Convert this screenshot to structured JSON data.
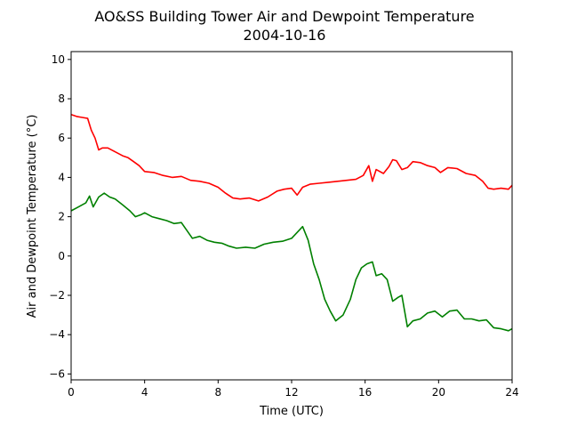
{
  "chart_data": {
    "type": "line",
    "title": "AO&SS Building Tower Air and Dewpoint Temperature",
    "subtitle": "2004-10-16",
    "xlabel": "Time (UTC)",
    "ylabel": "Air and Dewpoint Temperature (°C)",
    "xlim": [
      0,
      24
    ],
    "ylim": [
      -6.3,
      10.4
    ],
    "xticks": [
      0,
      4,
      8,
      12,
      16,
      20,
      24
    ],
    "yticks": [
      -6,
      -4,
      -2,
      0,
      2,
      4,
      6,
      8,
      10
    ],
    "grid": false,
    "legend": "none",
    "series": [
      {
        "color": "#ff0000",
        "x": [
          0,
          0.3,
          0.6,
          0.9,
          1.1,
          1.3,
          1.5,
          1.7,
          2.0,
          2.4,
          2.8,
          3.1,
          3.4,
          3.7,
          4.0,
          4.5,
          5.0,
          5.5,
          6.0,
          6.5,
          7.0,
          7.5,
          8.0,
          8.4,
          8.8,
          9.2,
          9.7,
          10.2,
          10.7,
          11.2,
          11.6,
          12.0,
          12.3,
          12.6,
          13.0,
          13.5,
          14.0,
          14.5,
          15.0,
          15.5,
          15.9,
          16.2,
          16.4,
          16.6,
          17.0,
          17.3,
          17.5,
          17.7,
          18.0,
          18.3,
          18.6,
          19.0,
          19.4,
          19.8,
          20.1,
          20.5,
          21.0,
          21.5,
          22.0,
          22.4,
          22.7,
          23.0,
          23.4,
          23.8,
          24.0
        ],
        "y": [
          7.2,
          7.1,
          7.05,
          7.0,
          6.4,
          6.0,
          5.4,
          5.5,
          5.5,
          5.3,
          5.1,
          5.0,
          4.8,
          4.6,
          4.3,
          4.25,
          4.1,
          4.0,
          4.05,
          3.85,
          3.8,
          3.7,
          3.5,
          3.2,
          2.95,
          2.9,
          2.95,
          2.8,
          3.0,
          3.3,
          3.4,
          3.45,
          3.1,
          3.5,
          3.65,
          3.7,
          3.75,
          3.8,
          3.85,
          3.9,
          4.1,
          4.6,
          3.8,
          4.4,
          4.2,
          4.55,
          4.9,
          4.85,
          4.4,
          4.5,
          4.8,
          4.75,
          4.6,
          4.5,
          4.25,
          4.5,
          4.45,
          4.2,
          4.1,
          3.8,
          3.45,
          3.4,
          3.45,
          3.4,
          3.6
        ]
      },
      {
        "color": "#008000",
        "x": [
          0,
          0.4,
          0.8,
          1.0,
          1.2,
          1.5,
          1.8,
          2.1,
          2.4,
          2.8,
          3.2,
          3.5,
          3.8,
          4.0,
          4.4,
          4.8,
          5.2,
          5.6,
          6.0,
          6.3,
          6.6,
          7.0,
          7.4,
          7.8,
          8.2,
          8.6,
          9.0,
          9.5,
          10.0,
          10.5,
          11.0,
          11.5,
          12.0,
          12.3,
          12.6,
          12.9,
          13.2,
          13.5,
          13.8,
          14.1,
          14.4,
          14.8,
          15.2,
          15.5,
          15.8,
          16.1,
          16.4,
          16.6,
          16.9,
          17.2,
          17.5,
          17.8,
          18.0,
          18.3,
          18.6,
          19.0,
          19.4,
          19.8,
          20.2,
          20.6,
          21.0,
          21.4,
          21.8,
          22.2,
          22.6,
          23.0,
          23.4,
          23.8,
          24.0
        ],
        "y": [
          2.3,
          2.5,
          2.7,
          3.05,
          2.5,
          3.0,
          3.2,
          3.0,
          2.9,
          2.6,
          2.3,
          2.0,
          2.1,
          2.2,
          2.0,
          1.9,
          1.8,
          1.65,
          1.7,
          1.3,
          0.9,
          1.0,
          0.8,
          0.7,
          0.65,
          0.5,
          0.4,
          0.45,
          0.4,
          0.6,
          0.7,
          0.75,
          0.9,
          1.2,
          1.5,
          0.8,
          -0.4,
          -1.2,
          -2.2,
          -2.8,
          -3.3,
          -3.0,
          -2.2,
          -1.2,
          -0.6,
          -0.4,
          -0.3,
          -1.0,
          -0.9,
          -1.2,
          -2.3,
          -2.1,
          -2.0,
          -3.6,
          -3.3,
          -3.2,
          -2.9,
          -2.8,
          -3.1,
          -2.8,
          -2.75,
          -3.2,
          -3.2,
          -3.3,
          -3.25,
          -3.65,
          -3.7,
          -3.8,
          -3.7
        ]
      }
    ]
  }
}
